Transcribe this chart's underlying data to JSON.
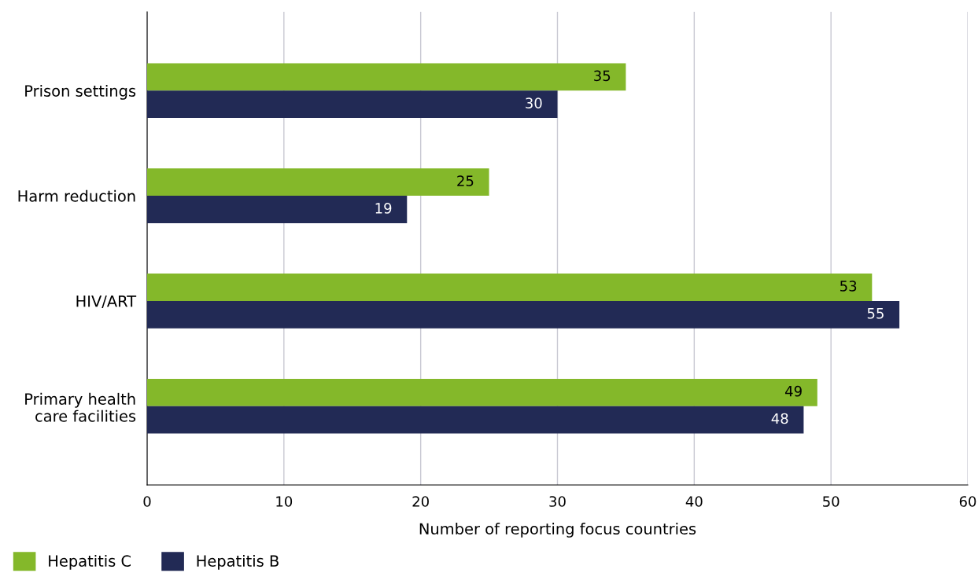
{
  "chart_data": {
    "type": "bar",
    "orientation": "horizontal",
    "categories": [
      "Prison settings",
      "Harm reduction",
      "HIV/ART",
      "Primary health\ncare facilities"
    ],
    "series": [
      {
        "name": "Hepatitis C",
        "color": "#84b82a",
        "values": [
          35,
          25,
          53,
          49
        ]
      },
      {
        "name": "Hepatitis B",
        "color": "#222a55",
        "values": [
          30,
          19,
          55,
          48
        ]
      }
    ],
    "xlabel": "Number of reporting focus countries",
    "xlim": [
      0,
      60
    ],
    "xticks": [
      0,
      10,
      20,
      30,
      40,
      50,
      60
    ],
    "grid": "x",
    "legend": "bottom left",
    "data_labels": true
  }
}
